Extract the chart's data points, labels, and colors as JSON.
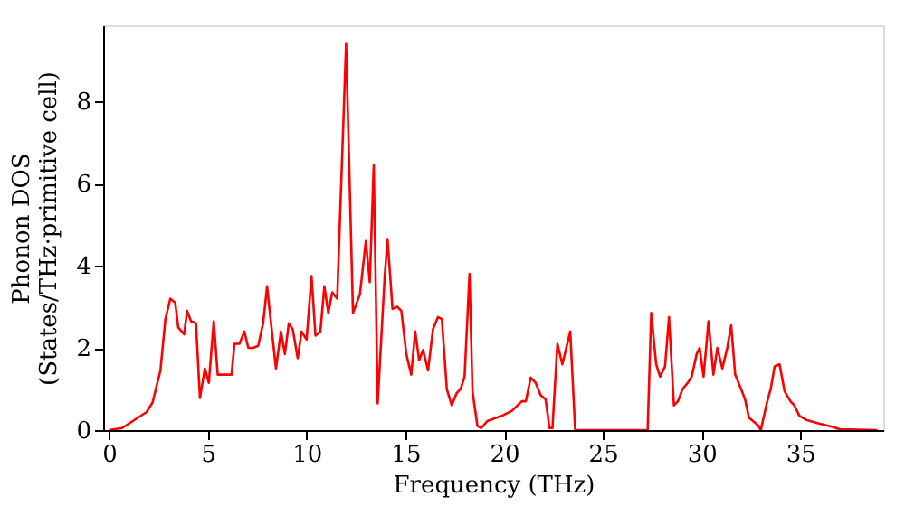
{
  "chart_data": {
    "type": "line",
    "xlabel": "Frequency (THz)",
    "ylabel": "Phonon DOS\n(States/THz·primitive cell)",
    "xlim": [
      -0.3,
      39.2
    ],
    "ylim": [
      0,
      9.85
    ],
    "xticks": [
      0,
      5,
      10,
      15,
      20,
      25,
      30,
      35
    ],
    "yticks": [
      0,
      2,
      4,
      6,
      8
    ],
    "grid": false,
    "marker": "none",
    "line_style": "solid",
    "series": [
      {
        "color": "#ff0000",
        "x": [
          0,
          0.66,
          1.9,
          2.2,
          2.6,
          2.85,
          3.1,
          3.35,
          3.5,
          3.8,
          3.95,
          4.15,
          4.4,
          4.6,
          4.85,
          5.05,
          5.3,
          5.5,
          5.75,
          6.0,
          6.2,
          6.35,
          6.6,
          6.85,
          7.05,
          7.3,
          7.55,
          7.8,
          8.0,
          8.2,
          8.45,
          8.7,
          8.9,
          9.1,
          9.3,
          9.55,
          9.75,
          10.0,
          10.25,
          10.45,
          10.7,
          10.9,
          11.1,
          11.3,
          11.55,
          12.0,
          12.35,
          12.7,
          13.0,
          13.2,
          13.4,
          13.6,
          13.95,
          14.1,
          14.35,
          14.6,
          14.8,
          15.05,
          15.3,
          15.5,
          15.7,
          15.9,
          16.15,
          16.4,
          16.65,
          16.85,
          17.1,
          17.35,
          17.6,
          17.8,
          18.0,
          18.25,
          18.4,
          18.65,
          18.85,
          19.15,
          19.5,
          19.9,
          20.4,
          20.9,
          21.1,
          21.35,
          21.6,
          21.85,
          22.1,
          22.3,
          22.45,
          22.7,
          22.95,
          23.35,
          23.6,
          25.2,
          27.27,
          27.45,
          27.7,
          27.9,
          28.15,
          28.35,
          28.6,
          28.8,
          29.04,
          29.3,
          29.5,
          29.75,
          29.9,
          30.1,
          30.35,
          30.6,
          30.8,
          31.05,
          31.3,
          31.5,
          31.7,
          32.0,
          32.2,
          32.4,
          32.85,
          33.0,
          33.3,
          33.5,
          33.7,
          33.95,
          34.2,
          34.5,
          34.7,
          34.95,
          35.3,
          35.95,
          36.6,
          37.0,
          38.9
        ],
        "values": [
          0,
          0.05,
          0.44,
          0.67,
          1.45,
          2.7,
          3.2,
          3.1,
          2.5,
          2.33,
          2.9,
          2.65,
          2.6,
          0.78,
          1.5,
          1.15,
          2.65,
          1.35,
          1.35,
          1.35,
          1.35,
          2.1,
          2.1,
          2.4,
          2.0,
          2.0,
          2.05,
          2.6,
          3.5,
          2.6,
          1.5,
          2.4,
          1.85,
          2.6,
          2.45,
          1.75,
          2.4,
          2.2,
          3.75,
          2.3,
          2.4,
          3.5,
          2.85,
          3.35,
          3.2,
          9.4,
          2.85,
          3.3,
          4.6,
          3.6,
          6.45,
          0.65,
          3.7,
          4.65,
          2.95,
          3.0,
          2.9,
          1.85,
          1.35,
          2.4,
          1.7,
          1.95,
          1.45,
          2.45,
          2.75,
          2.7,
          1.0,
          0.6,
          0.9,
          1.0,
          1.3,
          3.8,
          0.95,
          0.1,
          0.05,
          0.22,
          0.28,
          0.35,
          0.47,
          0.7,
          0.7,
          1.28,
          1.15,
          0.85,
          0.75,
          0.05,
          0.05,
          2.1,
          1.6,
          2.4,
          0,
          0,
          0,
          2.85,
          1.6,
          1.3,
          1.55,
          2.75,
          0.6,
          0.7,
          1.0,
          1.15,
          1.3,
          1.85,
          2.0,
          1.3,
          2.65,
          1.35,
          2.0,
          1.5,
          2.0,
          2.55,
          1.35,
          1.0,
          0.75,
          0.3,
          0.12,
          0,
          0.65,
          1.0,
          1.55,
          1.6,
          0.95,
          0.7,
          0.6,
          0.35,
          0.25,
          0.16,
          0.08,
          0.02,
          0
        ]
      }
    ]
  }
}
